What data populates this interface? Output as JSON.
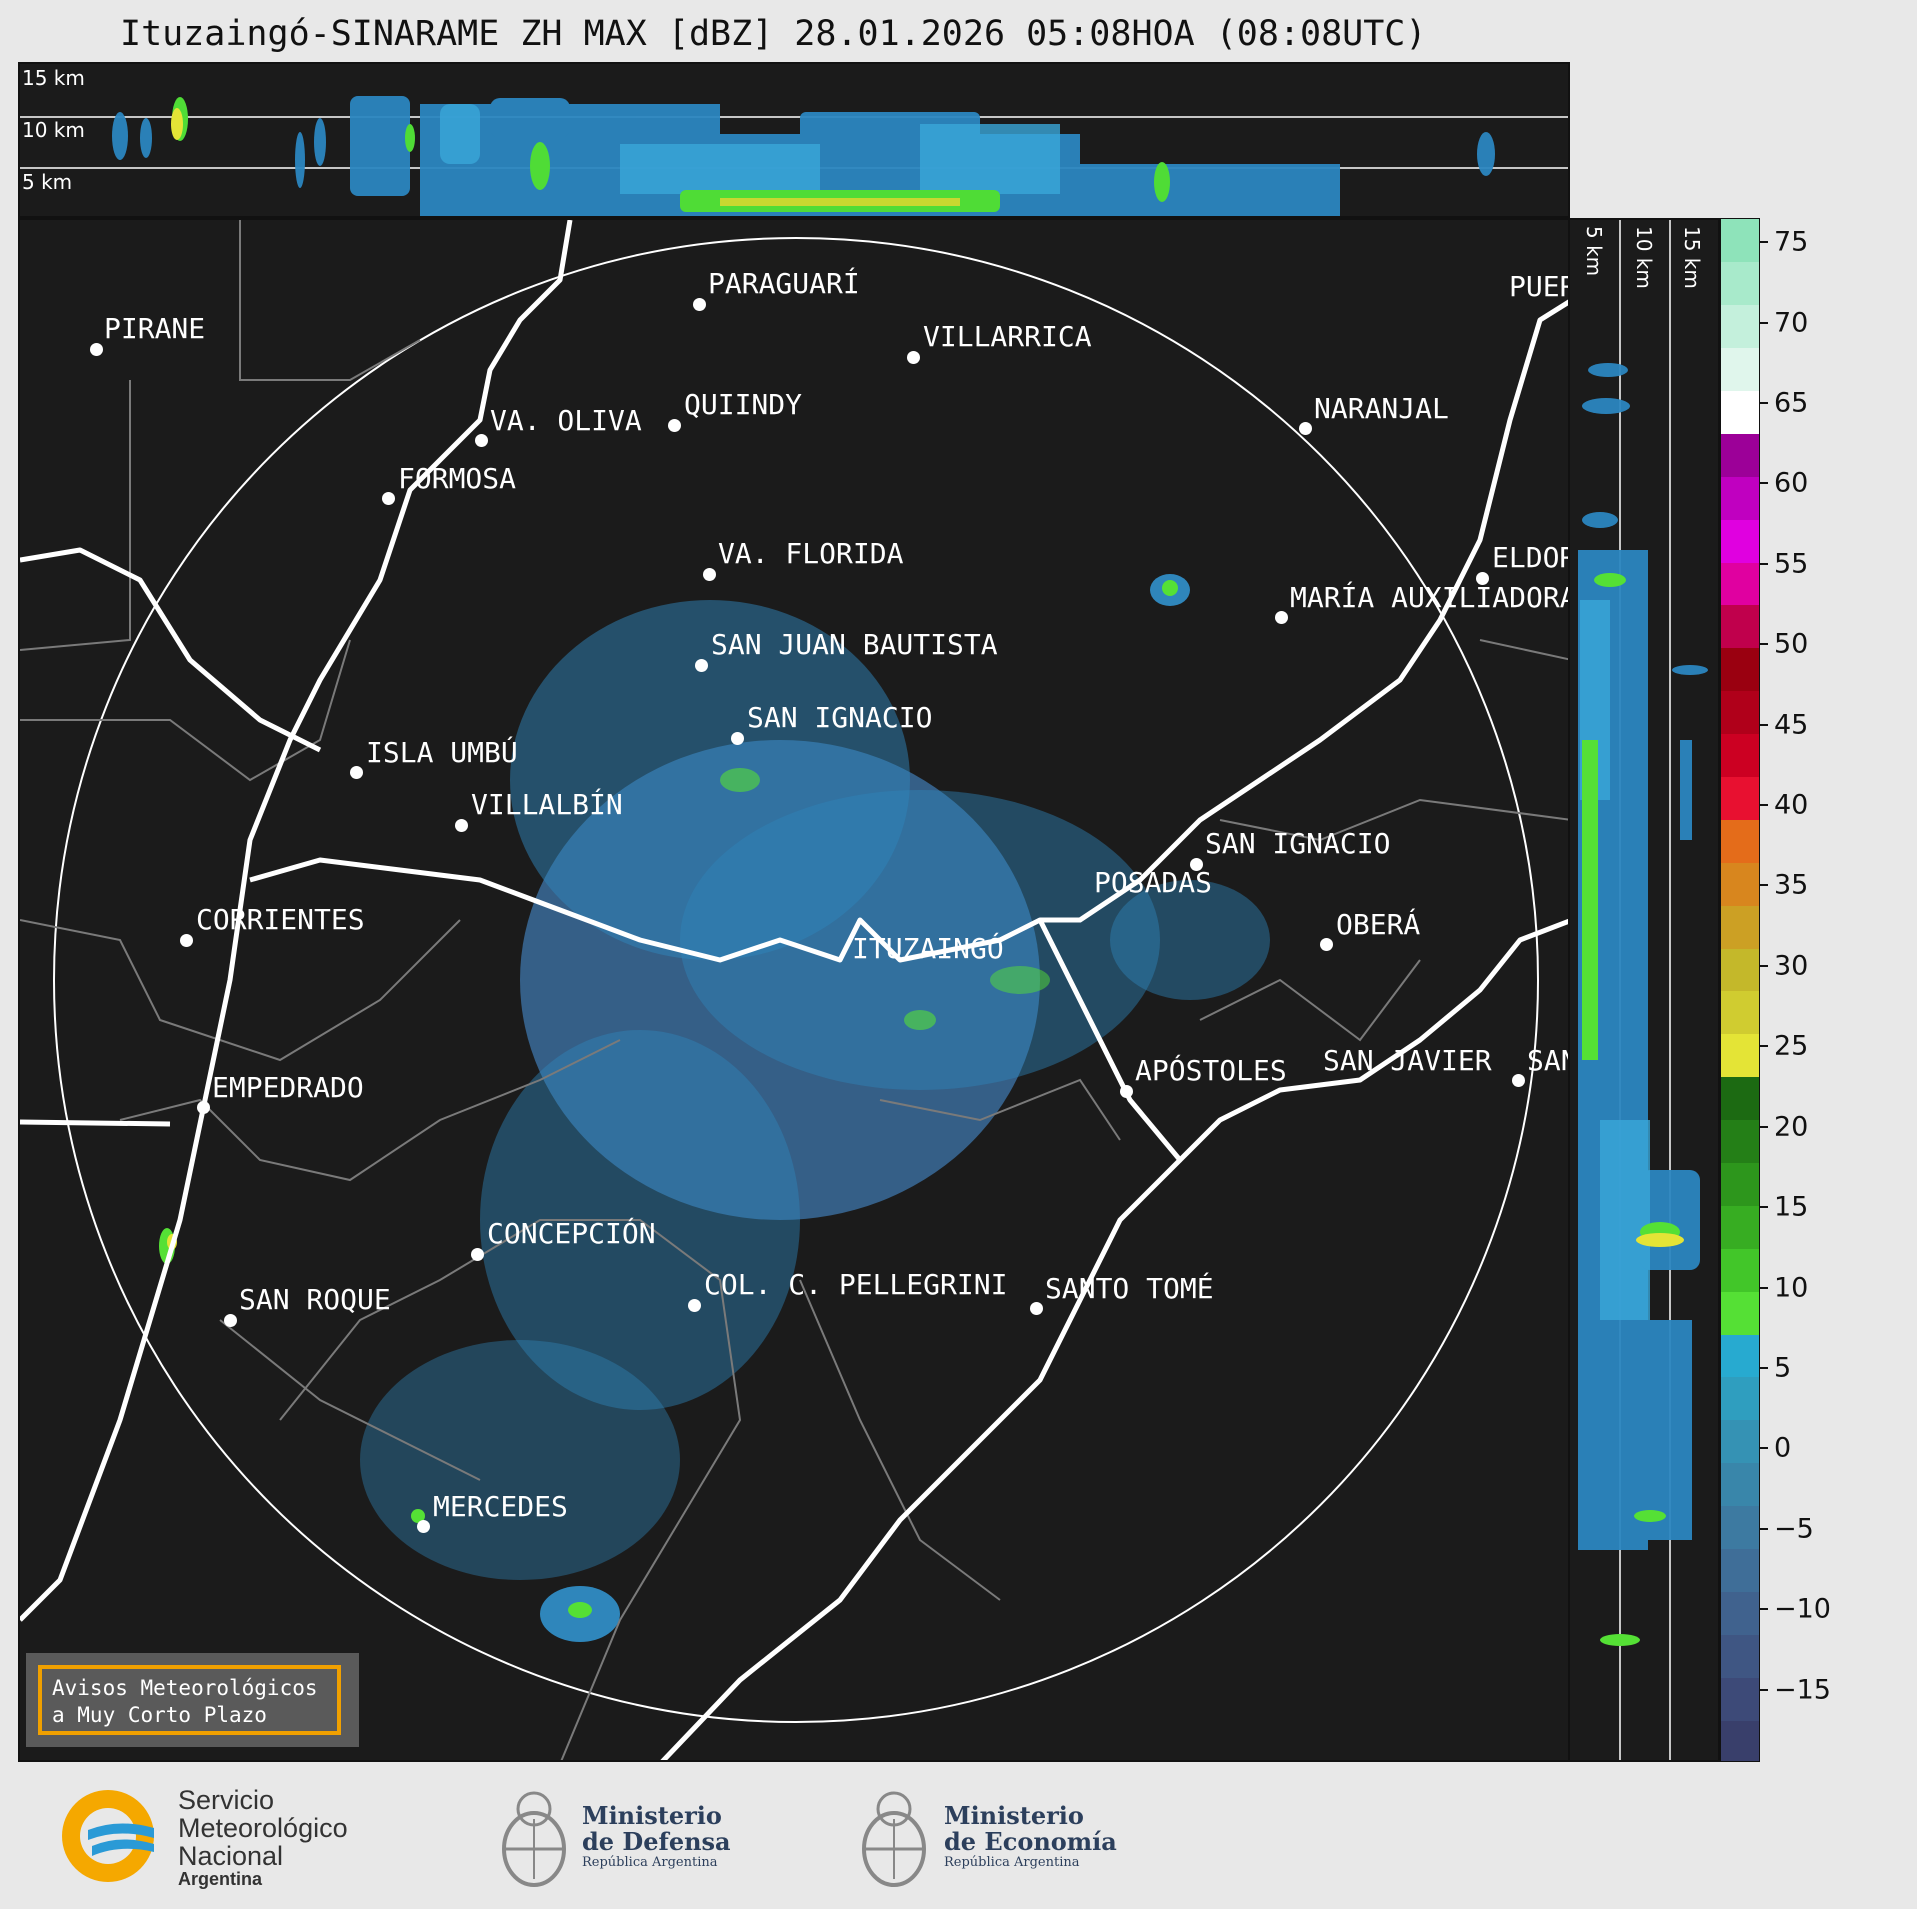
{
  "title": "Ituzaingó-SINARAME ZH MAX [dBZ] 28.01.2026 05:08HOA (08:08UTC)",
  "top_panel": {
    "height_labels": [
      "15 km",
      "10 km",
      "5 km"
    ]
  },
  "side_panel": {
    "height_labels": [
      "5 km",
      "10 km",
      "15 km"
    ]
  },
  "cities": [
    {
      "name": "PIRANE"
    },
    {
      "name": "PARAGUARÍ"
    },
    {
      "name": "VILLARRICA"
    },
    {
      "name": "VA. OLIVA"
    },
    {
      "name": "QUIINDY"
    },
    {
      "name": "NARANJAL"
    },
    {
      "name": "FORMOSA"
    },
    {
      "name": "VA. FLORIDA"
    },
    {
      "name": "ELDORADO"
    },
    {
      "name": "MARÍA AUXILIADORA"
    },
    {
      "name": "SAN JUAN BAUTISTA"
    },
    {
      "name": "SAN IGNACIO"
    },
    {
      "name": "ISLA UMBÚ"
    },
    {
      "name": "VILLALBÍN"
    },
    {
      "name": "SAN IGNACIO"
    },
    {
      "name": "POSADAS"
    },
    {
      "name": "CORRIENTES"
    },
    {
      "name": "ITUZAINGÓ"
    },
    {
      "name": "OBERÁ"
    },
    {
      "name": "EMPEDRADO"
    },
    {
      "name": "APÓSTOLES"
    },
    {
      "name": "SAN JAVIER"
    },
    {
      "name": "SAN"
    },
    {
      "name": "CONCEPCIÓN"
    },
    {
      "name": "COL. C. PELLEGRINI"
    },
    {
      "name": "SANTO TOMÉ"
    },
    {
      "name": "SAN ROQUE"
    },
    {
      "name": "MERCEDES"
    },
    {
      "name": "PUERTO"
    }
  ],
  "colorbar": {
    "unit": "dBZ",
    "ticks": [
      "75",
      "70",
      "65",
      "60",
      "55",
      "50",
      "45",
      "40",
      "35",
      "30",
      "25",
      "20",
      "15",
      "10",
      "5",
      "0",
      "−5",
      "−10",
      "−15"
    ],
    "colors": [
      "#393f6b",
      "#3d4a78",
      "#3f5683",
      "#40628e",
      "#3f6e98",
      "#3d7aa1",
      "#3986aa",
      "#3592b4",
      "#2f9ebf",
      "#27aad0",
      "#55e035",
      "#42c629",
      "#37ad22",
      "#2d961c",
      "#247f17",
      "#1c6a12",
      "#e4e436",
      "#d0cc30",
      "#c4b82a",
      "#cca024",
      "#d8861e",
      "#e46c1a",
      "#e81030",
      "#cc0022",
      "#b0001a",
      "#9a0010",
      "#c0004c",
      "#e000a0",
      "#e000e0",
      "#c000c0",
      "#9c0098",
      "#ffffff",
      "#e0f6ec",
      "#c4f0dc",
      "#a8eacb",
      "#8ee3ba"
    ],
    "range": [
      -19.5,
      76.5
    ]
  },
  "warning_box": {
    "line1": "Avisos Meteorológicos",
    "line2": "a Muy Corto Plazo"
  },
  "logos": {
    "smn": {
      "line1": "Servicio",
      "line2": "Meteorológico",
      "line3": "Nacional",
      "line4": "Argentina"
    },
    "defensa": {
      "line1": "Ministerio",
      "line2": "de Defensa",
      "line3": "República Argentina"
    },
    "economia": {
      "line1": "Ministerio",
      "line2": "de Economía",
      "line3": "República Argentina"
    }
  }
}
